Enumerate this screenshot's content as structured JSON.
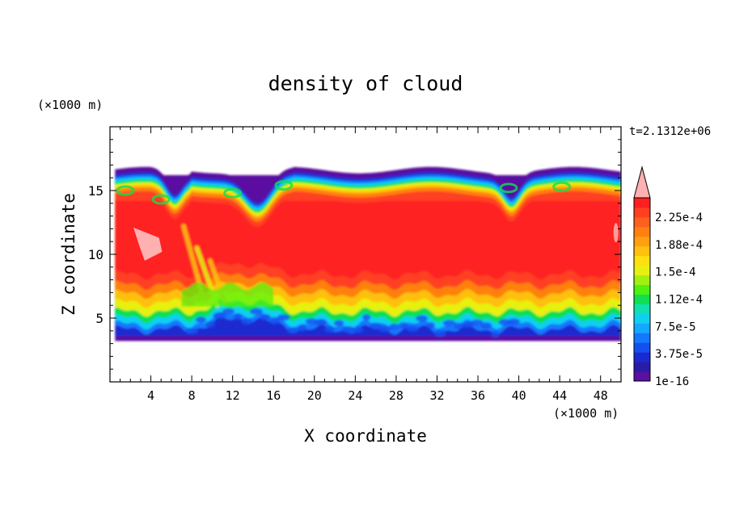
{
  "chart_data": {
    "type": "heatmap",
    "title": "density of cloud",
    "xlabel": "X coordinate",
    "ylabel": "Z coordinate",
    "x_unit": "(×1000 m)",
    "y_unit": "(×1000 m)",
    "time_label": "t=2.1312e+06",
    "xlim": [
      0,
      50
    ],
    "ylim": [
      0,
      20
    ],
    "x_ticks": [
      4,
      8,
      12,
      16,
      20,
      24,
      28,
      32,
      36,
      40,
      44,
      48
    ],
    "y_ticks": [
      5,
      10,
      15
    ],
    "colorbar": {
      "labels": [
        "2.25e-4",
        "1.88e-4",
        "1.5e-4",
        "1.12e-4",
        "7.5e-5",
        "3.75e-5",
        "1e-16"
      ],
      "colors": [
        "#5a10a0",
        "#2a1ca8",
        "#1a2ad0",
        "#1450f0",
        "#1478ff",
        "#14a8ff",
        "#10d0f0",
        "#10e0b0",
        "#10e050",
        "#50f010",
        "#a0f010",
        "#e8f010",
        "#ffe010",
        "#ffc010",
        "#ffa010",
        "#ff8010",
        "#ff6020",
        "#ff4020",
        "#ff2020",
        "#ffb0b0"
      ],
      "extend": "max"
    },
    "cloud_layer": {
      "base_z": 3.5,
      "top_z": 16.5,
      "core_range": [
        0.5,
        50
      ],
      "core_max": "2.25e-4"
    }
  }
}
